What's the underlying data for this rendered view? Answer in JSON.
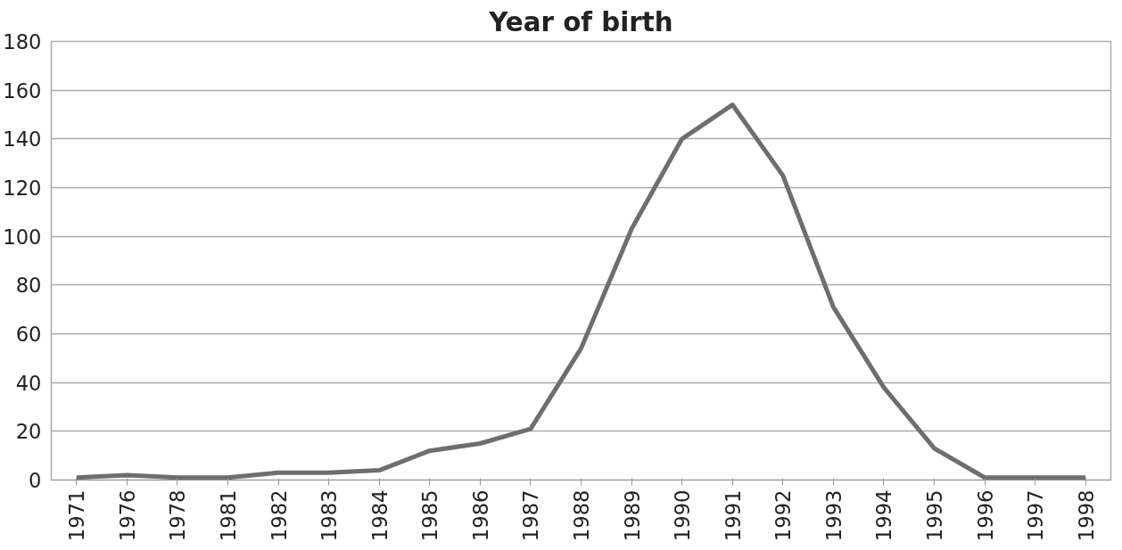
{
  "chart_data": {
    "type": "line",
    "title": "Year of birth",
    "categories": [
      "1971",
      "1976",
      "1978",
      "1981",
      "1982",
      "1983",
      "1984",
      "1985",
      "1986",
      "1987",
      "1988",
      "1989",
      "1990",
      "1991",
      "1992",
      "1993",
      "1994",
      "1995",
      "1996",
      "1997",
      "1998"
    ],
    "series": [
      {
        "color": "#6e6e6e",
        "values": [
          1,
          2,
          1,
          1,
          3,
          3,
          4,
          12,
          15,
          21,
          54,
          103,
          140,
          154,
          125,
          71,
          38,
          13,
          1,
          1,
          1
        ]
      }
    ],
    "ylim": [
      0,
      180
    ],
    "yticks": [
      0,
      20,
      40,
      60,
      80,
      100,
      120,
      140,
      160,
      180
    ],
    "grid": "y",
    "line_style": "solid"
  }
}
